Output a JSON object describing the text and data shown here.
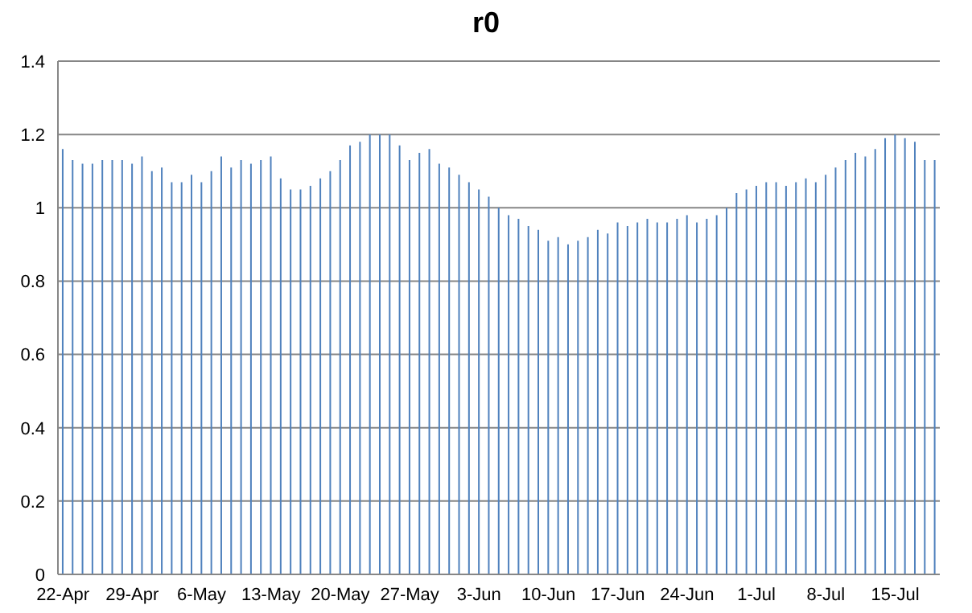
{
  "chart_data": {
    "type": "bar",
    "title": "r0",
    "categories": [
      "22-Apr",
      null,
      null,
      null,
      null,
      null,
      null,
      "29-Apr",
      null,
      null,
      null,
      null,
      null,
      null,
      "6-May",
      null,
      null,
      null,
      null,
      null,
      null,
      "13-May",
      null,
      null,
      null,
      null,
      null,
      null,
      "20-May",
      null,
      null,
      null,
      null,
      null,
      null,
      "27-May",
      null,
      null,
      null,
      null,
      null,
      null,
      "3-Jun",
      null,
      null,
      null,
      null,
      null,
      null,
      "10-Jun",
      null,
      null,
      null,
      null,
      null,
      null,
      "17-Jun",
      null,
      null,
      null,
      null,
      null,
      null,
      "24-Jun",
      null,
      null,
      null,
      null,
      null,
      null,
      "1-Jul",
      null,
      null,
      null,
      null,
      null,
      null,
      "8-Jul",
      null,
      null,
      null,
      null,
      null,
      null,
      "15-Jul",
      null,
      null,
      null,
      null
    ],
    "values": [
      1.16,
      1.13,
      1.12,
      1.12,
      1.13,
      1.13,
      1.13,
      1.12,
      1.14,
      1.1,
      1.11,
      1.07,
      1.07,
      1.09,
      1.07,
      1.1,
      1.14,
      1.11,
      1.13,
      1.12,
      1.13,
      1.14,
      1.08,
      1.05,
      1.05,
      1.06,
      1.08,
      1.1,
      1.13,
      1.17,
      1.18,
      1.2,
      1.2,
      1.2,
      1.17,
      1.13,
      1.15,
      1.16,
      1.12,
      1.11,
      1.09,
      1.07,
      1.05,
      1.03,
      1.0,
      0.98,
      0.97,
      0.95,
      0.94,
      0.91,
      0.92,
      0.9,
      0.91,
      0.92,
      0.94,
      0.93,
      0.96,
      0.95,
      0.96,
      0.97,
      0.96,
      0.96,
      0.97,
      0.98,
      0.96,
      0.97,
      0.98,
      1.0,
      1.04,
      1.05,
      1.06,
      1.07,
      1.07,
      1.06,
      1.07,
      1.08,
      1.07,
      1.09,
      1.11,
      1.13,
      1.15,
      1.14,
      1.16,
      1.19,
      1.2,
      1.19,
      1.18,
      1.13,
      1.13
    ],
    "color": "#4f81bd",
    "ylim": [
      0,
      1.4
    ],
    "yticks": [
      0,
      0.2,
      0.4,
      0.6,
      0.8,
      1,
      1.2,
      1.4
    ],
    "grid": "y"
  }
}
